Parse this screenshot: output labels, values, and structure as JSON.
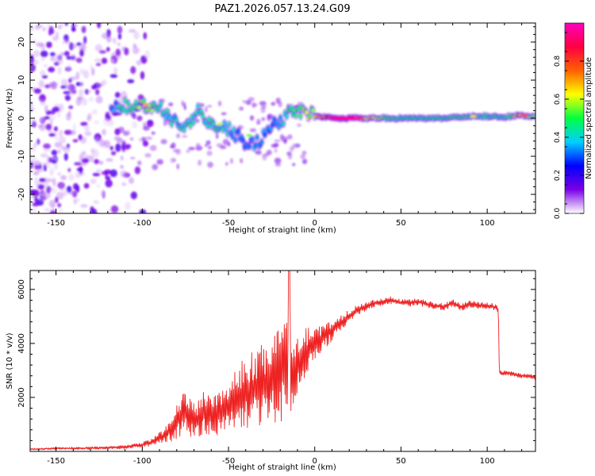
{
  "title": "PAZ1.2026.057.13.24.G09",
  "colors": {
    "snr_line": "#ee2222",
    "axis": "#000000",
    "colormap": [
      "#ffffff",
      "#7a00e6",
      "#0000ff",
      "#00d0ff",
      "#00ff40",
      "#ffff00",
      "#ff6000",
      "#ff0040",
      "#ff00c0"
    ]
  },
  "chart_data": [
    {
      "type": "heatmap",
      "name": "spectrogram",
      "xlabel": "Height of straight line (km)",
      "ylabel": "Frequency (Hz)",
      "xlim": [
        -165,
        128
      ],
      "ylim": [
        -25,
        25
      ],
      "xticks": [
        -150,
        -100,
        -50,
        0,
        50,
        100
      ],
      "yticks": [
        -20,
        -10,
        0,
        10,
        20
      ],
      "colorbar": {
        "label": "Normalized spectral amplitude",
        "range": [
          0,
          1
        ],
        "ticks": [
          0.0,
          0.2,
          0.4,
          0.6,
          0.8
        ]
      },
      "ridge": [
        {
          "x": -118,
          "f": 3.0,
          "a": 0.3
        },
        {
          "x": -110,
          "f": 3.2,
          "a": 0.45
        },
        {
          "x": -100,
          "f": 3.5,
          "a": 0.55
        },
        {
          "x": -92,
          "f": 3.3,
          "a": 0.5
        },
        {
          "x": -85,
          "f": 1.0,
          "a": 0.4
        },
        {
          "x": -80,
          "f": -1.5,
          "a": 0.4
        },
        {
          "x": -72,
          "f": -2.0,
          "a": 0.45
        },
        {
          "x": -68,
          "f": 2.5,
          "a": 0.4
        },
        {
          "x": -62,
          "f": -1.0,
          "a": 0.45
        },
        {
          "x": -55,
          "f": -2.5,
          "a": 0.45
        },
        {
          "x": -50,
          "f": -3.0,
          "a": 0.4
        },
        {
          "x": -45,
          "f": -4.5,
          "a": 0.35
        },
        {
          "x": -40,
          "f": -6.5,
          "a": 0.35
        },
        {
          "x": -35,
          "f": -7.0,
          "a": 0.35
        },
        {
          "x": -30,
          "f": -5.0,
          "a": 0.35
        },
        {
          "x": -25,
          "f": -2.0,
          "a": 0.35
        },
        {
          "x": -20,
          "f": -1.0,
          "a": 0.35
        },
        {
          "x": -15,
          "f": 1.0,
          "a": 0.45
        },
        {
          "x": -10,
          "f": 2.0,
          "a": 0.5
        },
        {
          "x": -5,
          "f": 1.5,
          "a": 0.55
        },
        {
          "x": 0,
          "f": 0.8,
          "a": 0.6
        },
        {
          "x": 5,
          "f": 0.3,
          "a": 0.8
        },
        {
          "x": 10,
          "f": 0.0,
          "a": 0.9
        },
        {
          "x": 18,
          "f": 0.0,
          "a": 1.0
        },
        {
          "x": 25,
          "f": 0.0,
          "a": 0.7
        },
        {
          "x": 50,
          "f": 0.0,
          "a": 0.45
        },
        {
          "x": 75,
          "f": 0.0,
          "a": 0.45
        },
        {
          "x": 92,
          "f": 0.5,
          "a": 0.5
        },
        {
          "x": 100,
          "f": 0.5,
          "a": 0.45
        },
        {
          "x": 110,
          "f": 0.3,
          "a": 0.45
        },
        {
          "x": 120,
          "f": 0.8,
          "a": 0.7
        },
        {
          "x": 128,
          "f": 0.5,
          "a": 0.5
        }
      ],
      "noise_region": {
        "x_range": [
          -165,
          -95
        ],
        "f_range": [
          -25,
          25
        ]
      }
    },
    {
      "type": "line",
      "name": "snr",
      "xlabel": "Height of straight line (km)",
      "ylabel": "SNR (10 * v/v)",
      "xlim": [
        -165,
        128
      ],
      "ylim": [
        0,
        6700
      ],
      "xticks": [
        -150,
        -100,
        -50,
        0,
        50,
        100
      ],
      "yticks": [
        2000,
        4000,
        6000
      ],
      "series": [
        {
          "name": "SNR",
          "x": [
            -165,
            -150,
            -130,
            -110,
            -100,
            -95,
            -90,
            -85,
            -80,
            -76,
            -72,
            -68,
            -64,
            -60,
            -56,
            -52,
            -48,
            -44,
            -40,
            -36,
            -32,
            -28,
            -24,
            -20,
            -17,
            -15,
            -13,
            -10,
            -5,
            0,
            5,
            10,
            15,
            20,
            25,
            30,
            35,
            40,
            45,
            50,
            55,
            60,
            65,
            70,
            75,
            80,
            85,
            90,
            95,
            100,
            104,
            106.5,
            107,
            108,
            112,
            116,
            120,
            124,
            128
          ],
          "y": [
            80,
            110,
            120,
            160,
            240,
            330,
            480,
            700,
            1150,
            1450,
            1250,
            1150,
            1500,
            1250,
            1400,
            1550,
            1750,
            2000,
            2150,
            2300,
            2450,
            2550,
            2700,
            2900,
            3100,
            3150,
            3000,
            3300,
            3700,
            4000,
            4250,
            4500,
            4750,
            5000,
            5250,
            5350,
            5500,
            5550,
            5600,
            5500,
            5500,
            5550,
            5450,
            5400,
            5350,
            5500,
            5350,
            5450,
            5400,
            5400,
            5350,
            5250,
            2950,
            2900,
            2900,
            2850,
            2800,
            2800,
            2750
          ],
          "noise": [
            30,
            40,
            50,
            60,
            100,
            150,
            220,
            400,
            700,
            800,
            700,
            650,
            800,
            700,
            800,
            1000,
            1100,
            1300,
            1300,
            1400,
            1500,
            1600,
            1700,
            1800,
            2000,
            2500,
            1800,
            1200,
            900,
            600,
            500,
            400,
            300,
            250,
            200,
            160,
            140,
            140,
            140,
            130,
            130,
            130,
            130,
            130,
            130,
            130,
            130,
            130,
            130,
            130,
            130,
            130,
            100,
            90,
            90,
            90,
            90,
            90,
            90
          ],
          "peak": {
            "x": -15,
            "y": 6700
          }
        }
      ]
    }
  ]
}
